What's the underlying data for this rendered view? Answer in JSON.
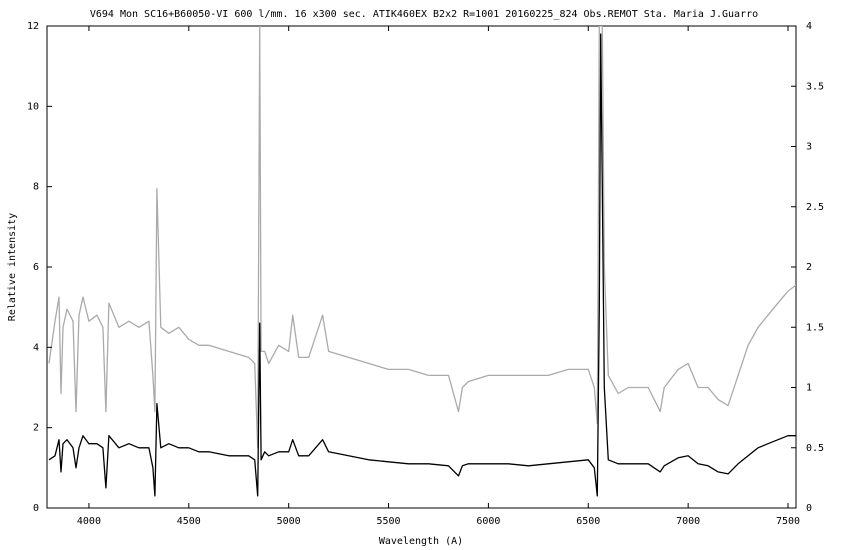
{
  "chart_data": {
    "type": "line",
    "title": "V694 Mon SC16+B60050-VI 600 l/mm.  16 x300 sec.  ATIK460EX   B2x2  R=1001    20160225_824  Obs.REMOT   Sta. Maria  J.Guarro",
    "x_label": "Wavelength (A)",
    "y_label": "Relative intensity",
    "x": [
      3800,
      3830,
      3850,
      3860,
      3870,
      3890,
      3920,
      3935,
      3950,
      3970,
      4000,
      4040,
      4070,
      4085,
      4100,
      4150,
      4200,
      4250,
      4300,
      4320,
      4330,
      4340,
      4360,
      4400,
      4450,
      4500,
      4550,
      4600,
      4700,
      4800,
      4830,
      4845,
      4855,
      4862,
      4880,
      4900,
      4950,
      5000,
      5020,
      5050,
      5100,
      5170,
      5200,
      5300,
      5400,
      5500,
      5600,
      5700,
      5800,
      5850,
      5870,
      5900,
      6000,
      6100,
      6200,
      6300,
      6400,
      6500,
      6530,
      6545,
      6555,
      6562,
      6570,
      6580,
      6600,
      6650,
      6700,
      6800,
      6860,
      6880,
      6950,
      7000,
      7050,
      7100,
      7150,
      7200,
      7250,
      7300,
      7350,
      7400,
      7450,
      7500,
      7540
    ],
    "series": [
      {
        "color": "#aaaaaa",
        "axis": "y2",
        "values": [
          1.2,
          1.55,
          1.75,
          0.95,
          1.5,
          1.65,
          1.55,
          0.8,
          1.6,
          1.75,
          1.55,
          1.6,
          1.5,
          0.8,
          1.7,
          1.5,
          1.55,
          1.5,
          1.55,
          1.1,
          0.8,
          2.65,
          1.5,
          1.45,
          1.5,
          1.4,
          1.35,
          1.35,
          1.3,
          1.25,
          1.2,
          0.5,
          4.0,
          1.3,
          1.3,
          1.2,
          1.35,
          1.3,
          1.6,
          1.25,
          1.25,
          1.6,
          1.3,
          1.25,
          1.2,
          1.15,
          1.15,
          1.1,
          1.1,
          0.8,
          1.0,
          1.05,
          1.1,
          1.1,
          1.1,
          1.1,
          1.15,
          1.15,
          1.0,
          0.7,
          4.0,
          4.0,
          4.0,
          2.0,
          1.1,
          0.95,
          1.0,
          1.0,
          0.8,
          1.0,
          1.15,
          1.2,
          1.0,
          1.0,
          0.9,
          0.85,
          1.1,
          1.35,
          1.5,
          1.6,
          1.7,
          1.8,
          1.85
        ]
      },
      {
        "color": "#000000",
        "values": [
          1.2,
          1.3,
          1.7,
          0.9,
          1.6,
          1.7,
          1.5,
          1.0,
          1.5,
          1.8,
          1.6,
          1.6,
          1.5,
          0.5,
          1.8,
          1.5,
          1.6,
          1.5,
          1.5,
          1.0,
          0.3,
          2.6,
          1.5,
          1.6,
          1.5,
          1.5,
          1.4,
          1.4,
          1.3,
          1.3,
          1.2,
          0.3,
          4.6,
          1.2,
          1.4,
          1.3,
          1.4,
          1.4,
          1.7,
          1.3,
          1.3,
          1.7,
          1.4,
          1.3,
          1.2,
          1.15,
          1.1,
          1.1,
          1.05,
          0.8,
          1.05,
          1.1,
          1.1,
          1.1,
          1.05,
          1.1,
          1.15,
          1.2,
          1.0,
          0.3,
          5.0,
          11.8,
          8.0,
          3.0,
          1.2,
          1.1,
          1.1,
          1.1,
          0.9,
          1.05,
          1.25,
          1.3,
          1.1,
          1.05,
          0.9,
          0.85,
          1.1,
          1.3,
          1.5,
          1.6,
          1.7,
          1.8,
          1.8
        ]
      }
    ],
    "xlim": [
      3790,
      7540
    ],
    "xticks": [
      4000,
      4500,
      5000,
      5500,
      6000,
      6500,
      7000,
      7500
    ],
    "ylim": [
      0,
      12
    ],
    "yticks": [
      0,
      2,
      4,
      6,
      8,
      10,
      12
    ],
    "y2lim": [
      0,
      4
    ],
    "y2ticks": [
      0,
      0.5,
      1,
      1.5,
      2,
      2.5,
      3,
      3.5,
      4
    ]
  }
}
